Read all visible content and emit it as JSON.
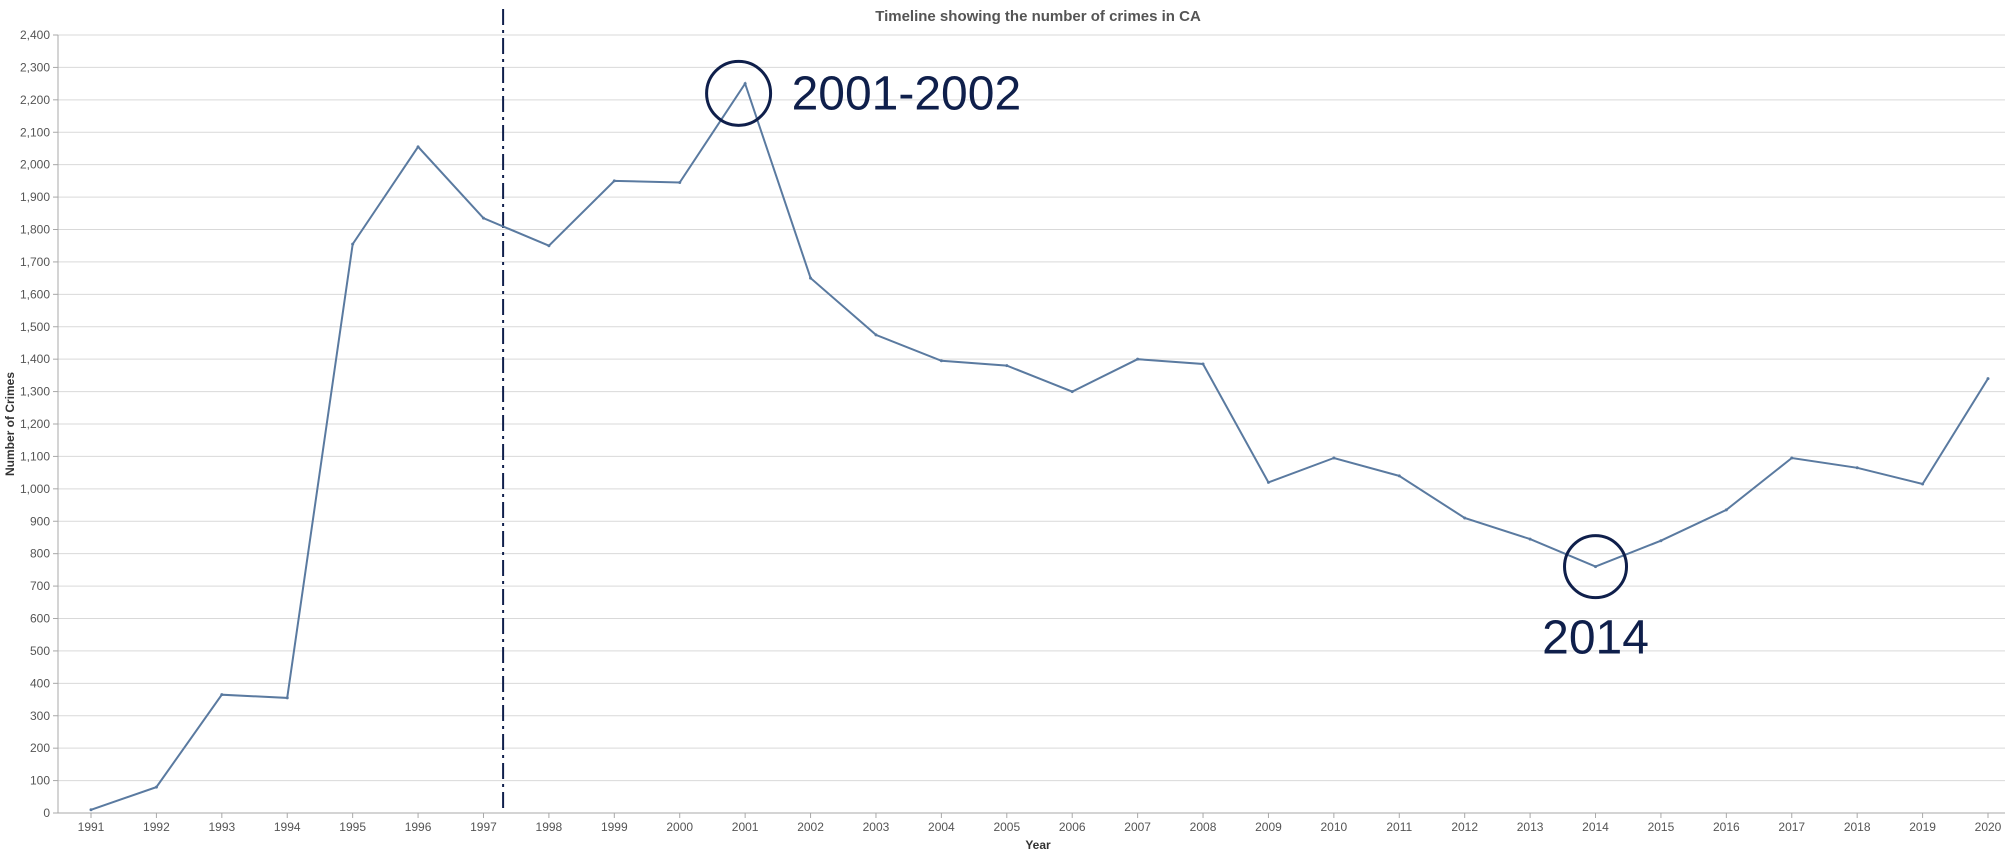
{
  "chart_data": {
    "type": "line",
    "title": "Timeline showing the number of crimes in  CA",
    "xlabel": "Year",
    "ylabel": "Number of Crimes",
    "ylim": [
      0,
      2400
    ],
    "y_ticks": [
      0,
      100,
      200,
      300,
      400,
      500,
      600,
      700,
      800,
      900,
      1000,
      1100,
      1200,
      1300,
      1400,
      1500,
      1600,
      1700,
      1800,
      1900,
      2000,
      2100,
      2200,
      2300,
      2400
    ],
    "y_tick_labels": [
      "0",
      "100",
      "200",
      "300",
      "400",
      "500",
      "600",
      "700",
      "800",
      "900",
      "1,000",
      "1,100",
      "1,200",
      "1,300",
      "1,400",
      "1,500",
      "1,600",
      "1,700",
      "1,800",
      "1,900",
      "2,000",
      "2,100",
      "2,200",
      "2,300",
      "2,400"
    ],
    "grid": true,
    "x": [
      "1991",
      "1992",
      "1993",
      "1994",
      "1995",
      "1996",
      "1997",
      "1998",
      "1999",
      "2000",
      "2001",
      "2002",
      "2003",
      "2004",
      "2005",
      "2006",
      "2007",
      "2008",
      "2009",
      "2010",
      "2011",
      "2012",
      "2013",
      "2014",
      "2015",
      "2016",
      "2017",
      "2018",
      "2019",
      "2020"
    ],
    "series": [
      {
        "color": "#5a7aa0",
        "values": [
          10,
          80,
          365,
          355,
          1755,
          2055,
          1835,
          1750,
          1950,
          1945,
          2250,
          1650,
          1475,
          1395,
          1380,
          1300,
          1400,
          1385,
          1020,
          1095,
          1040,
          910,
          845,
          760,
          840,
          935,
          1095,
          1065,
          1015,
          1340
        ]
      }
    ],
    "reference_line": {
      "x_value": 1997.3,
      "style": "dash-dot",
      "color": "#0f1f4b"
    },
    "annotations": [
      {
        "text": "2001-2002",
        "x_value": 2000.9,
        "y_value": 2220,
        "color": "#0f1f4b"
      },
      {
        "text": "2014",
        "x_value": 2014,
        "y_value": 760,
        "color": "#0f1f4b"
      }
    ]
  }
}
